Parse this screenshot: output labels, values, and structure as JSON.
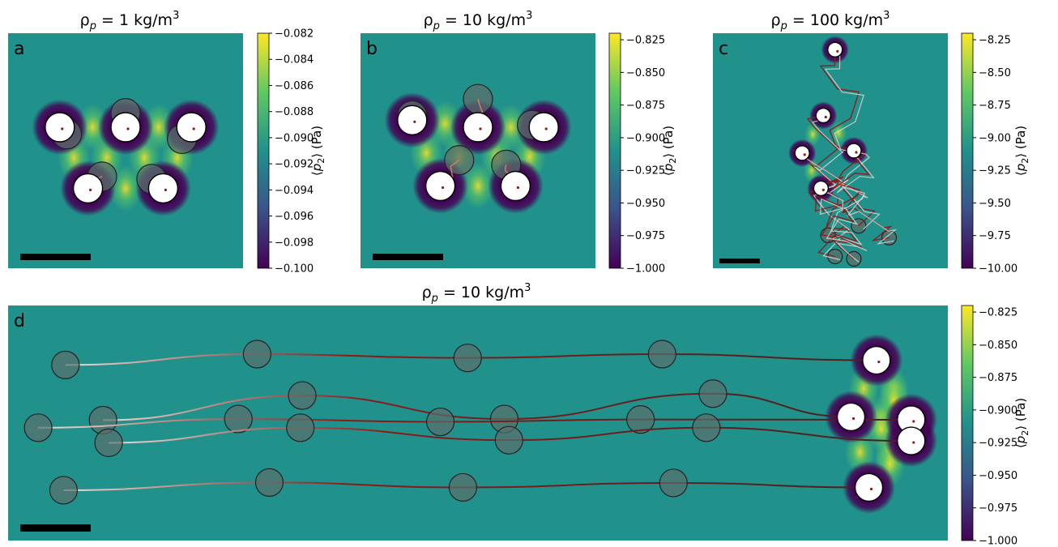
{
  "colors": {
    "background": "#21918c",
    "cmap": [
      "#440154",
      "#3b528b",
      "#21918c",
      "#5ec962",
      "#fde725"
    ],
    "particle_fill_final": "#ffffff",
    "particle_fill_initial": "#5a6f6b",
    "trajectory_start": "#e8dcd6",
    "trajectory_end": "#8b1a1a",
    "scale_bar": "#000000"
  },
  "chart_data": [
    {
      "type": "heatmap",
      "panel_label": "a",
      "title": "ρp = 1 kg/m3",
      "title_parts": {
        "rho": "ρ",
        "sub": "p",
        "eq": " = 1 kg/m",
        "sup": "3"
      },
      "colorbar": {
        "label_prefix": "⟨",
        "label_var": "p",
        "label_sub": "2",
        "label_suffix": "⟩ (Pa)",
        "range": [
          -0.1,
          -0.082
        ],
        "ticks": [
          "−0.082",
          "−0.084",
          "−0.086",
          "−0.088",
          "−0.090",
          "−0.092",
          "−0.094",
          "−0.096",
          "−0.098",
          "−0.100"
        ],
        "tick_values": [
          -0.082,
          -0.084,
          -0.086,
          -0.088,
          -0.09,
          -0.092,
          -0.094,
          -0.096,
          -0.098,
          -0.1
        ]
      },
      "scale_bar": true,
      "particles_final": [
        [
          0.22,
          0.4
        ],
        [
          0.5,
          0.4
        ],
        [
          0.78,
          0.4
        ],
        [
          0.34,
          0.66
        ],
        [
          0.66,
          0.66
        ]
      ],
      "particles_initial": [
        [
          0.25,
          0.43
        ],
        [
          0.5,
          0.34
        ],
        [
          0.74,
          0.45
        ],
        [
          0.4,
          0.61
        ],
        [
          0.61,
          0.62
        ]
      ]
    },
    {
      "type": "heatmap",
      "panel_label": "b",
      "title": "ρp = 10 kg/m3",
      "title_parts": {
        "rho": "ρ",
        "sub": "p",
        "eq": " = 10 kg/m",
        "sup": "3"
      },
      "colorbar": {
        "label_prefix": "⟨",
        "label_var": "p",
        "label_sub": "2",
        "label_suffix": "⟩ (Pa)",
        "range": [
          -1.0,
          -0.82
        ],
        "ticks": [
          "−0.825",
          "−0.850",
          "−0.875",
          "−0.900",
          "−0.925",
          "−0.950",
          "−0.975",
          "−1.000"
        ],
        "tick_values": [
          -0.825,
          -0.85,
          -0.875,
          -0.9,
          -0.925,
          -0.95,
          -0.975,
          -1.0
        ]
      },
      "scale_bar": true,
      "particles_final": [
        [
          0.22,
          0.37
        ],
        [
          0.5,
          0.4
        ],
        [
          0.78,
          0.4
        ],
        [
          0.34,
          0.65
        ],
        [
          0.66,
          0.65
        ]
      ],
      "particles_initial": [
        [
          0.22,
          0.35
        ],
        [
          0.5,
          0.28
        ],
        [
          0.73,
          0.39
        ],
        [
          0.42,
          0.54
        ],
        [
          0.62,
          0.56
        ]
      ]
    },
    {
      "type": "heatmap",
      "panel_label": "c",
      "title": "ρp = 100 kg/m3",
      "title_parts": {
        "rho": "ρ",
        "sub": "p",
        "eq": " = 100 kg/m",
        "sup": "3"
      },
      "colorbar": {
        "label_prefix": "⟨",
        "label_var": "p",
        "label_sub": "2",
        "label_suffix": "⟩ (Pa)",
        "range": [
          -10.0,
          -8.2
        ],
        "ticks": [
          "−8.25",
          "−8.50",
          "−8.75",
          "−9.00",
          "−9.25",
          "−9.50",
          "−9.75",
          "−10.00"
        ],
        "tick_values": [
          -8.25,
          -8.5,
          -8.75,
          -9.0,
          -9.25,
          -9.5,
          -9.75,
          -10.0
        ]
      },
      "scale_bar": true,
      "particles_final": [
        [
          0.52,
          0.07
        ],
        [
          0.47,
          0.35
        ],
        [
          0.38,
          0.51
        ],
        [
          0.6,
          0.5
        ],
        [
          0.46,
          0.66
        ]
      ],
      "particles_initial": [
        [
          0.62,
          0.82
        ],
        [
          0.49,
          0.86
        ],
        [
          0.75,
          0.87
        ],
        [
          0.52,
          0.95
        ],
        [
          0.6,
          0.96
        ]
      ]
    },
    {
      "type": "heatmap",
      "panel_label": "d",
      "title": "ρp = 10 kg/m3",
      "title_parts": {
        "rho": "ρ",
        "sub": "p",
        "eq": " = 10 kg/m",
        "sup": "3"
      },
      "colorbar": {
        "label_prefix": "⟨",
        "label_var": "p",
        "label_sub": "2",
        "label_suffix": "⟩ (Pa)",
        "range": [
          -1.0,
          -0.82
        ],
        "ticks": [
          "−0.825",
          "−0.850",
          "−0.875",
          "−0.900",
          "−0.925",
          "−0.950",
          "−0.975",
          "−1.000"
        ],
        "tick_values": [
          -0.825,
          -0.85,
          -0.875,
          -0.9,
          -0.925,
          -0.95,
          -0.975,
          -1.0
        ]
      },
      "scale_bar": true,
      "tracks": [
        {
          "path": [
            [
              0.061,
              0.253
            ],
            [
              0.265,
              0.207
            ],
            [
              0.489,
              0.223
            ],
            [
              0.696,
              0.207
            ],
            [
              0.92,
              0.233
            ]
          ],
          "final": [
            0.924,
            0.233
          ]
        },
        {
          "path": [
            [
              0.101,
              0.488
            ],
            [
              0.313,
              0.383
            ],
            [
              0.528,
              0.483
            ],
            [
              0.75,
              0.375
            ],
            [
              0.897,
              0.474
            ]
          ],
          "final": [
            0.897,
            0.474
          ]
        },
        {
          "path": [
            [
              0.032,
              0.52
            ],
            [
              0.245,
              0.483
            ],
            [
              0.46,
              0.495
            ],
            [
              0.673,
              0.485
            ],
            [
              0.955,
              0.486
            ]
          ],
          "final": [
            0.961,
            0.486
          ]
        },
        {
          "path": [
            [
              0.107,
              0.584
            ],
            [
              0.311,
              0.52
            ],
            [
              0.533,
              0.573
            ],
            [
              0.743,
              0.52
            ],
            [
              0.954,
              0.576
            ]
          ],
          "final": [
            0.961,
            0.576
          ]
        },
        {
          "path": [
            [
              0.059,
              0.786
            ],
            [
              0.278,
              0.753
            ],
            [
              0.484,
              0.774
            ],
            [
              0.708,
              0.755
            ],
            [
              0.916,
              0.774
            ]
          ],
          "final": [
            0.916,
            0.774
          ]
        }
      ]
    }
  ]
}
